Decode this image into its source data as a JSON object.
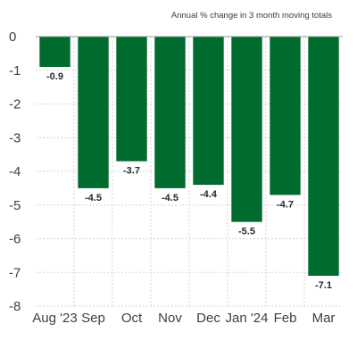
{
  "chart_data": {
    "type": "bar",
    "subtitle": "Annual % change in 3 month moving totals",
    "categories": [
      "Aug '23",
      "Sep",
      "Oct",
      "Nov",
      "Dec",
      "Jan '24",
      "Feb",
      "Mar"
    ],
    "values": [
      -0.9,
      -4.5,
      -3.7,
      -4.5,
      -4.4,
      -5.5,
      -4.7,
      -7.1
    ],
    "data_labels": [
      "-0.9",
      "-4.5",
      "-3.7",
      "-4.5",
      "-4.4",
      "-5.5",
      "-4.7",
      "-7.1"
    ],
    "ylim": [
      -8,
      0
    ],
    "yticks": [
      0,
      -1,
      -2,
      -3,
      -4,
      -5,
      -6,
      -7,
      -8
    ],
    "ytick_labels": [
      "0",
      "-1",
      "-2",
      "-3",
      "-4",
      "-5",
      "-6",
      "-7",
      "-8"
    ],
    "xlabel": "",
    "ylabel": "",
    "grid": true,
    "bar_color": "#006B2F"
  }
}
